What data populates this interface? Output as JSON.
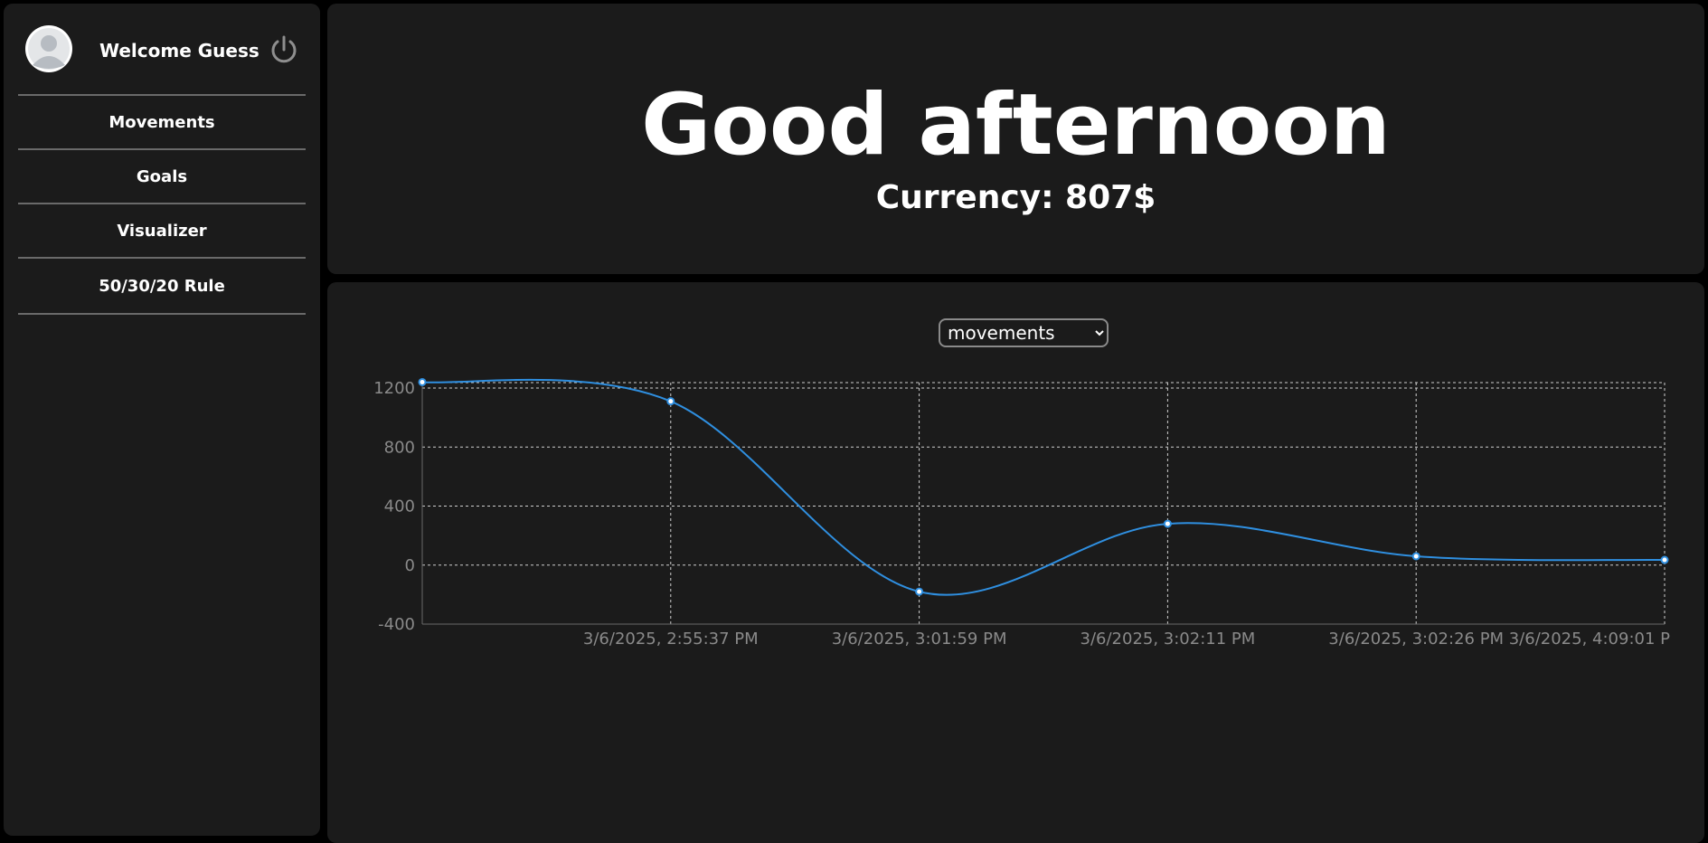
{
  "sidebar": {
    "welcome_text": "Welcome Guess",
    "avatar_icon": "user-avatar-icon",
    "logout_icon": "power-icon",
    "items": [
      {
        "label": "Movements"
      },
      {
        "label": "Goals"
      },
      {
        "label": "Visualizer"
      },
      {
        "label": "50/30/20 Rule"
      }
    ]
  },
  "header": {
    "greeting": "Good afternoon",
    "currency": "Currency: 807$"
  },
  "chart_select": {
    "value": "movements",
    "options": [
      "movements"
    ]
  },
  "colors": {
    "background": "#000000",
    "card": "#1b1b1b",
    "line": "#2f8fe0",
    "grid": "#cfcfcf",
    "tick_text": "#8a8a8a"
  },
  "chart_data": {
    "type": "line",
    "title": "",
    "xlabel": "",
    "ylabel": "",
    "ylim": [
      -400,
      1200
    ],
    "yticks": [
      1200,
      800,
      400,
      0,
      -400
    ],
    "grid": true,
    "x": [
      "",
      "3/6/2025, 2:55:37 PM",
      "3/6/2025, 3:01:59 PM",
      "3/6/2025, 3:02:11 PM",
      "3/6/2025, 3:02:26 PM",
      "3/6/2025, 4:09:01 P"
    ],
    "series": [
      {
        "values": [
          1240,
          1110,
          -180,
          280,
          60,
          35
        ]
      }
    ]
  }
}
